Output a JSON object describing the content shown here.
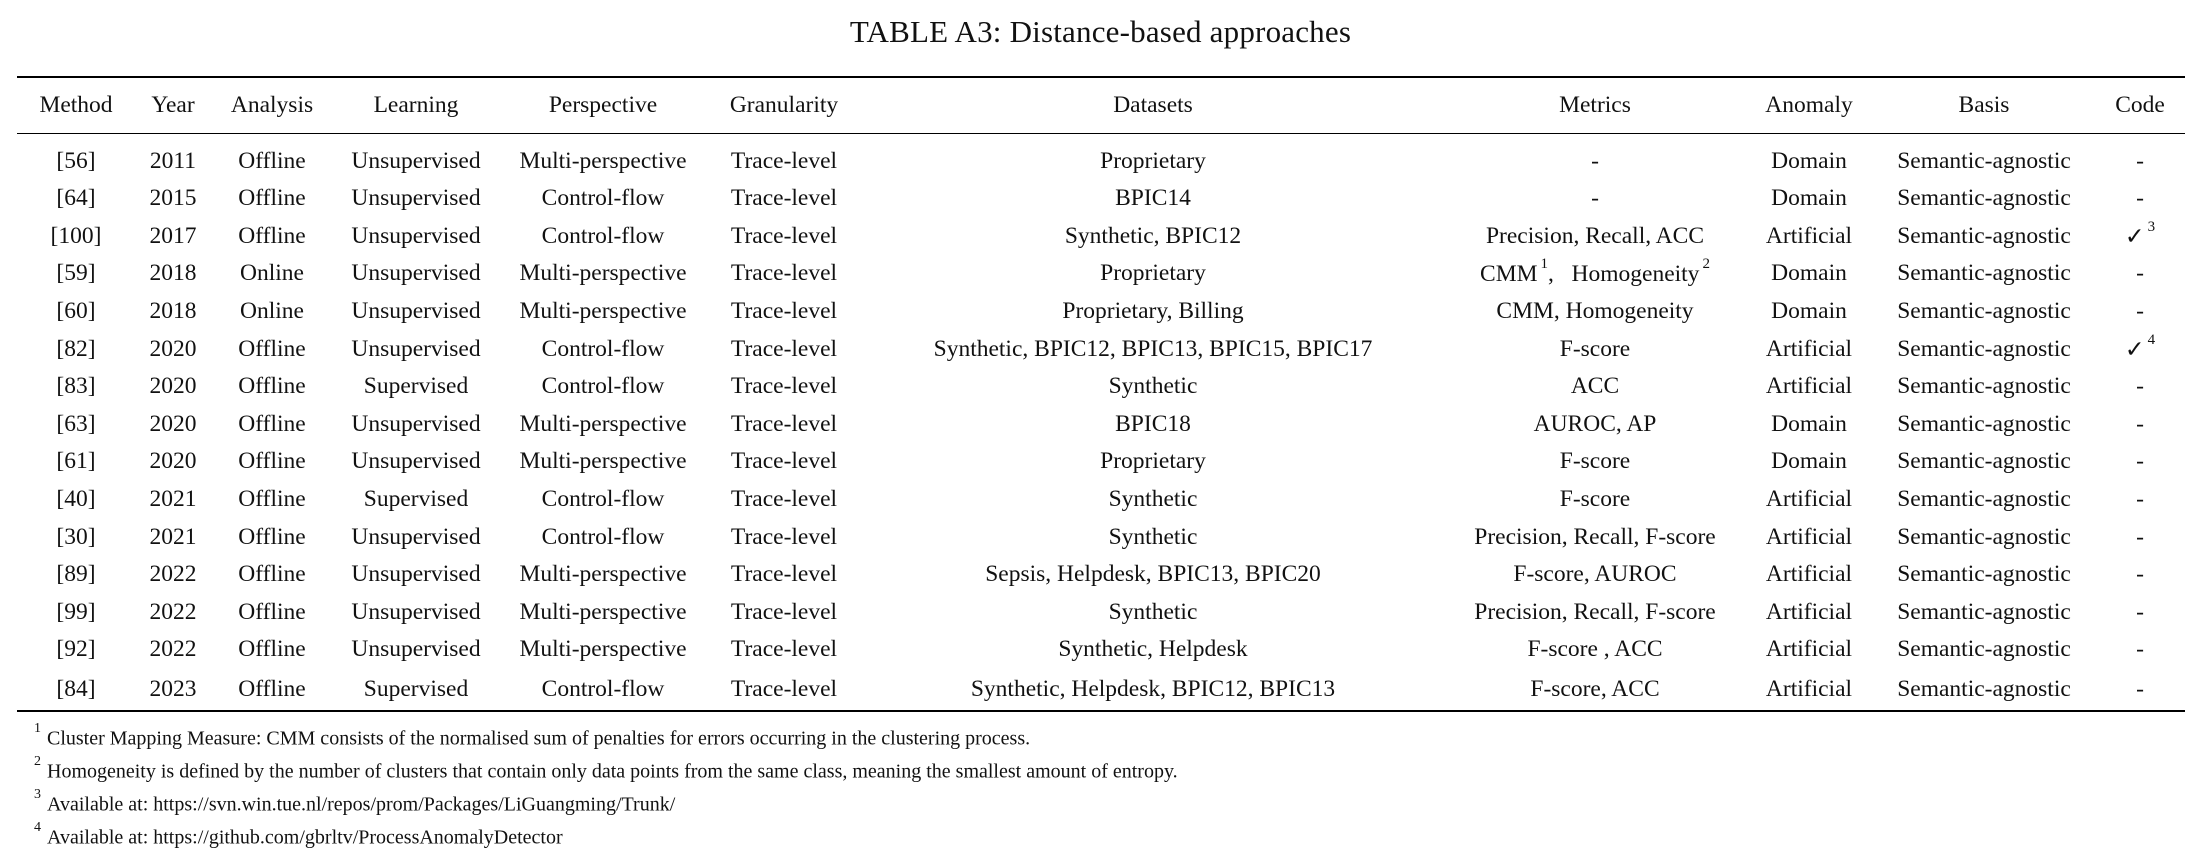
{
  "caption": "TABLE A3: Distance-based approaches",
  "columns": [
    "Method",
    "Year",
    "Analysis",
    "Learning",
    "Perspective",
    "Granularity",
    "Datasets",
    "Metrics",
    "Anomaly",
    "Basis",
    "Code"
  ],
  "rows": [
    {
      "method": "[56]",
      "year": "2011",
      "analysis": "Offline",
      "learning": "Unsupervised",
      "perspective": "Multi-perspective",
      "granularity": "Trace-level",
      "datasets": "Proprietary",
      "metrics": "-",
      "anomaly": "Domain",
      "basis": "Semantic-agnostic",
      "code": "-",
      "code_note": ""
    },
    {
      "method": "[64]",
      "year": "2015",
      "analysis": "Offline",
      "learning": "Unsupervised",
      "perspective": "Control-flow",
      "granularity": "Trace-level",
      "datasets": "BPIC14",
      "metrics": "-",
      "anomaly": "Domain",
      "basis": "Semantic-agnostic",
      "code": "-",
      "code_note": ""
    },
    {
      "method": "[100]",
      "year": "2017",
      "analysis": "Offline",
      "learning": "Unsupervised",
      "perspective": "Control-flow",
      "granularity": "Trace-level",
      "datasets": "Synthetic, BPIC12",
      "metrics": "Precision, Recall, ACC",
      "anomaly": "Artificial",
      "basis": "Semantic-agnostic",
      "code": "✓",
      "code_note": "3"
    },
    {
      "method": "[59]",
      "year": "2018",
      "analysis": "Online",
      "learning": "Unsupervised",
      "perspective": "Multi-perspective",
      "granularity": "Trace-level",
      "datasets": "Proprietary",
      "metrics_parts": [
        "CMM",
        "1",
        ",   Homogeneity",
        "2"
      ],
      "anomaly": "Domain",
      "basis": "Semantic-agnostic",
      "code": "-",
      "code_note": ""
    },
    {
      "method": "[60]",
      "year": "2018",
      "analysis": "Online",
      "learning": "Unsupervised",
      "perspective": "Multi-perspective",
      "granularity": "Trace-level",
      "datasets": "Proprietary, Billing",
      "metrics": "CMM, Homogeneity",
      "anomaly": "Domain",
      "basis": "Semantic-agnostic",
      "code": "-",
      "code_note": ""
    },
    {
      "method": "[82]",
      "year": "2020",
      "analysis": "Offline",
      "learning": "Unsupervised",
      "perspective": "Control-flow",
      "granularity": "Trace-level",
      "datasets": "Synthetic, BPIC12, BPIC13, BPIC15, BPIC17",
      "metrics": "F-score",
      "anomaly": "Artificial",
      "basis": "Semantic-agnostic",
      "code": "✓",
      "code_note": "4"
    },
    {
      "method": "[83]",
      "year": "2020",
      "analysis": "Offline",
      "learning": "Supervised",
      "perspective": "Control-flow",
      "granularity": "Trace-level",
      "datasets": "Synthetic",
      "metrics": "ACC",
      "anomaly": "Artificial",
      "basis": "Semantic-agnostic",
      "code": "-",
      "code_note": ""
    },
    {
      "method": "[63]",
      "year": "2020",
      "analysis": "Offline",
      "learning": "Unsupervised",
      "perspective": "Multi-perspective",
      "granularity": "Trace-level",
      "datasets": "BPIC18",
      "metrics": "AUROC, AP",
      "anomaly": "Domain",
      "basis": "Semantic-agnostic",
      "code": "-",
      "code_note": ""
    },
    {
      "method": "[61]",
      "year": "2020",
      "analysis": "Offline",
      "learning": "Unsupervised",
      "perspective": "Multi-perspective",
      "granularity": "Trace-level",
      "datasets": "Proprietary",
      "metrics": "F-score",
      "anomaly": "Domain",
      "basis": "Semantic-agnostic",
      "code": "-",
      "code_note": ""
    },
    {
      "method": "[40]",
      "year": "2021",
      "analysis": "Offline",
      "learning": "Supervised",
      "perspective": "Control-flow",
      "granularity": "Trace-level",
      "datasets": "Synthetic",
      "metrics": "F-score",
      "anomaly": "Artificial",
      "basis": "Semantic-agnostic",
      "code": "-",
      "code_note": ""
    },
    {
      "method": "[30]",
      "year": "2021",
      "analysis": "Offline",
      "learning": "Unsupervised",
      "perspective": "Control-flow",
      "granularity": "Trace-level",
      "datasets": "Synthetic",
      "metrics": "Precision, Recall, F-score",
      "anomaly": "Artificial",
      "basis": "Semantic-agnostic",
      "code": "-",
      "code_note": ""
    },
    {
      "method": "[89]",
      "year": "2022",
      "analysis": "Offline",
      "learning": "Unsupervised",
      "perspective": "Multi-perspective",
      "granularity": "Trace-level",
      "datasets": "Sepsis, Helpdesk, BPIC13, BPIC20",
      "metrics": "F-score, AUROC",
      "anomaly": "Artificial",
      "basis": "Semantic-agnostic",
      "code": "-",
      "code_note": ""
    },
    {
      "method": "[99]",
      "year": "2022",
      "analysis": "Offline",
      "learning": "Unsupervised",
      "perspective": "Multi-perspective",
      "granularity": "Trace-level",
      "datasets": "Synthetic",
      "metrics": "Precision, Recall, F-score",
      "anomaly": "Artificial",
      "basis": "Semantic-agnostic",
      "code": "-",
      "code_note": ""
    },
    {
      "method": "[92]",
      "year": "2022",
      "analysis": "Offline",
      "learning": "Unsupervised",
      "perspective": "Multi-perspective",
      "granularity": "Trace-level",
      "datasets": "Synthetic, Helpdesk",
      "metrics": "F-score , ACC",
      "anomaly": "Artificial",
      "basis": "Semantic-agnostic",
      "code": "-",
      "code_note": ""
    },
    {
      "method": "[84]",
      "year": "2023",
      "analysis": "Offline",
      "learning": "Supervised",
      "perspective": "Control-flow",
      "granularity": "Trace-level",
      "datasets": "Synthetic, Helpdesk, BPIC12, BPIC13",
      "metrics": "F-score, ACC",
      "anomaly": "Artificial",
      "basis": "Semantic-agnostic",
      "code": "-",
      "code_note": ""
    }
  ],
  "footnotes": [
    {
      "num": "1",
      "text": "Cluster Mapping Measure: CMM consists of the normalised sum of penalties for errors occurring in the clustering process."
    },
    {
      "num": "2",
      "text": "Homogeneity is defined by the number of clusters that contain only data points from the same class, meaning the smallest amount of entropy."
    },
    {
      "num": "3",
      "text": "Available at: https://svn.win.tue.nl/repos/prom/Packages/LiGuangming/Trunk/"
    },
    {
      "num": "4",
      "text": "Available at: https://github.com/gbrltv/ProcessAnomalyDetector"
    }
  ]
}
